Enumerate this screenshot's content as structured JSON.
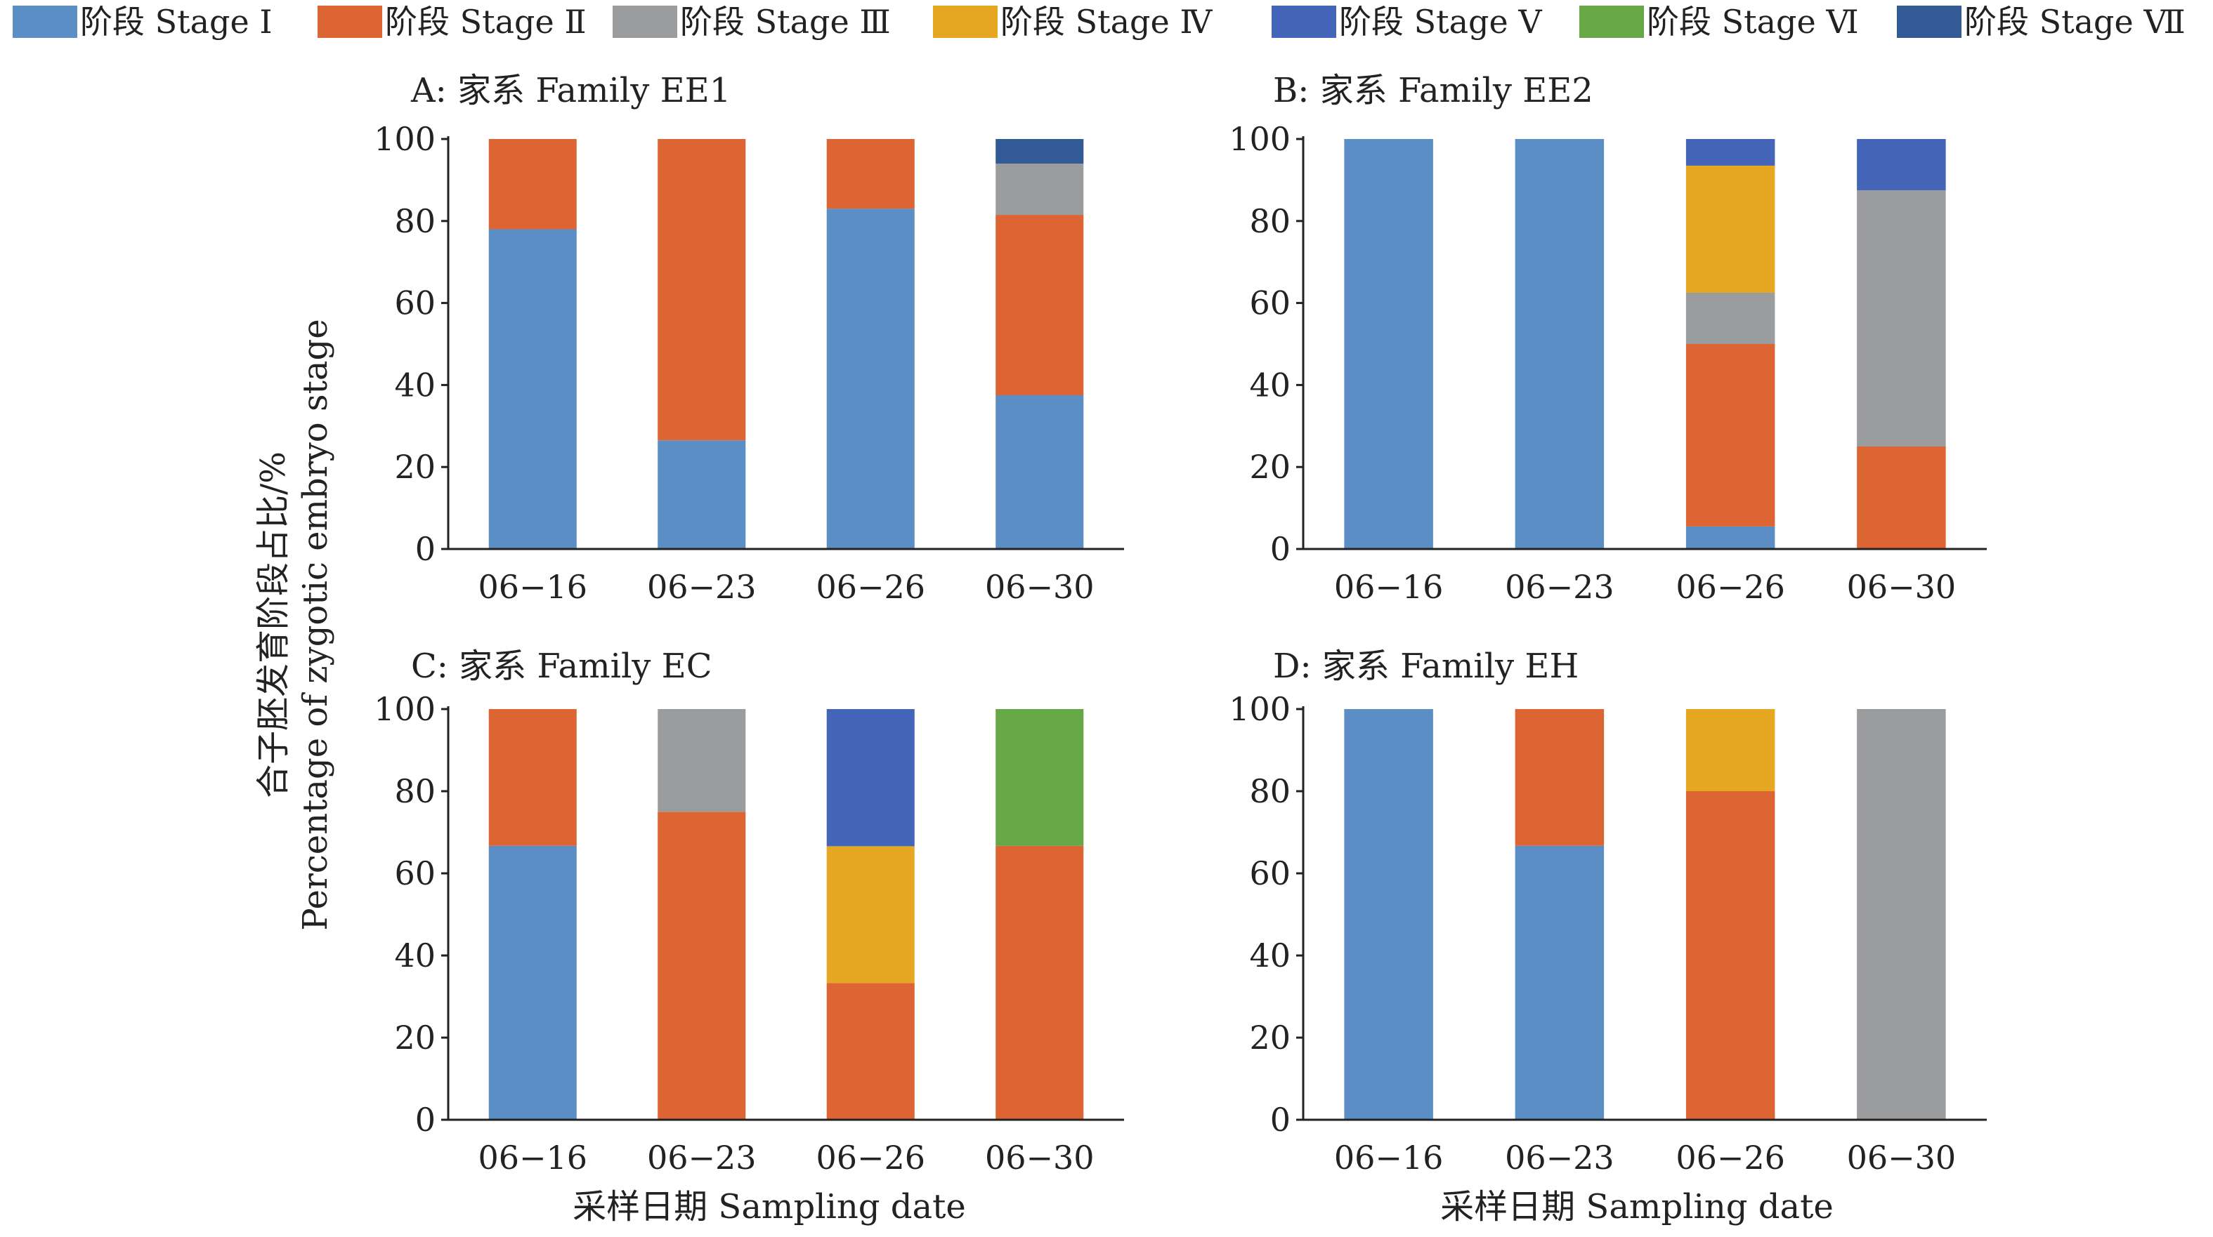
{
  "legend": [
    {
      "label": "阶段 Stage Ⅰ",
      "color": "#5b8ec4"
    },
    {
      "label": "阶段 Stage Ⅱ",
      "color": "#dd6533"
    },
    {
      "label": "阶段 Stage Ⅲ",
      "color": "#9b9c9e"
    },
    {
      "label": "阶段 Stage Ⅳ",
      "color": "#e6a823"
    },
    {
      "label": "阶段 Stage Ⅴ",
      "color": "#4566b8"
    },
    {
      "label": "阶段 Stage Ⅵ",
      "color": "#65a845"
    },
    {
      "label": "阶段 Stage Ⅶ",
      "color": "#325a94"
    }
  ],
  "ylabel_line1": "合子胚发育阶段占比/%",
  "ylabel_line2": "Percentage of zygotic embryo stage",
  "xlabel": "采样日期 Sampling date",
  "chart_data": [
    {
      "type": "bar",
      "stacked": true,
      "title": "A: 家系 Family EE1",
      "categories": [
        "06−16",
        "06−23",
        "06−26",
        "06−30"
      ],
      "ylim": [
        0,
        100
      ],
      "yticks": [
        0,
        20,
        40,
        60,
        80,
        100
      ],
      "series": [
        {
          "name": "阶段 Stage Ⅰ",
          "values": [
            78,
            26.5,
            83,
            37.5
          ]
        },
        {
          "name": "阶段 Stage Ⅱ",
          "values": [
            22,
            73.5,
            17,
            44
          ]
        },
        {
          "name": "阶段 Stage Ⅲ",
          "values": [
            0,
            0,
            0,
            12.5
          ]
        },
        {
          "name": "阶段 Stage Ⅳ",
          "values": [
            0,
            0,
            0,
            0
          ]
        },
        {
          "name": "阶段 Stage Ⅴ",
          "values": [
            0,
            0,
            0,
            0
          ]
        },
        {
          "name": "阶段 Stage Ⅵ",
          "values": [
            0,
            0,
            0,
            0
          ]
        },
        {
          "name": "阶段 Stage Ⅶ",
          "values": [
            0,
            0,
            0,
            6
          ]
        }
      ]
    },
    {
      "type": "bar",
      "stacked": true,
      "title": "B: 家系 Family EE2",
      "categories": [
        "06−16",
        "06−23",
        "06−26",
        "06−30"
      ],
      "ylim": [
        0,
        100
      ],
      "yticks": [
        0,
        20,
        40,
        60,
        80,
        100
      ],
      "series": [
        {
          "name": "阶段 Stage Ⅰ",
          "values": [
            100,
            100,
            5.5,
            0
          ]
        },
        {
          "name": "阶段 Stage Ⅱ",
          "values": [
            0,
            0,
            44.5,
            25
          ]
        },
        {
          "name": "阶段 Stage Ⅲ",
          "values": [
            0,
            0,
            12.5,
            62.5
          ]
        },
        {
          "name": "阶段 Stage Ⅳ",
          "values": [
            0,
            0,
            31,
            0
          ]
        },
        {
          "name": "阶段 Stage Ⅴ",
          "values": [
            0,
            0,
            6.5,
            12.5
          ]
        },
        {
          "name": "阶段 Stage Ⅵ",
          "values": [
            0,
            0,
            0,
            0
          ]
        },
        {
          "name": "阶段 Stage Ⅶ",
          "values": [
            0,
            0,
            0,
            0
          ]
        }
      ]
    },
    {
      "type": "bar",
      "stacked": true,
      "title": "C: 家系 Family EC",
      "categories": [
        "06−16",
        "06−23",
        "06−26",
        "06−30"
      ],
      "ylim": [
        0,
        100
      ],
      "yticks": [
        0,
        20,
        40,
        60,
        80,
        100
      ],
      "series": [
        {
          "name": "阶段 Stage Ⅰ",
          "values": [
            66.7,
            0,
            0,
            0
          ]
        },
        {
          "name": "阶段 Stage Ⅱ",
          "values": [
            33.3,
            75,
            33.3,
            66.7
          ]
        },
        {
          "name": "阶段 Stage Ⅲ",
          "values": [
            0,
            25,
            0,
            0
          ]
        },
        {
          "name": "阶段 Stage Ⅳ",
          "values": [
            0,
            0,
            33.3,
            0
          ]
        },
        {
          "name": "阶段 Stage Ⅴ",
          "values": [
            0,
            0,
            33.4,
            0
          ]
        },
        {
          "name": "阶段 Stage Ⅵ",
          "values": [
            0,
            0,
            0,
            33.3
          ]
        },
        {
          "name": "阶段 Stage Ⅶ",
          "values": [
            0,
            0,
            0,
            0
          ]
        }
      ]
    },
    {
      "type": "bar",
      "stacked": true,
      "title": "D: 家系 Family EH",
      "categories": [
        "06−16",
        "06−23",
        "06−26",
        "06−30"
      ],
      "ylim": [
        0,
        100
      ],
      "yticks": [
        0,
        20,
        40,
        60,
        80,
        100
      ],
      "series": [
        {
          "name": "阶段 Stage Ⅰ",
          "values": [
            100,
            66.7,
            0,
            0
          ]
        },
        {
          "name": "阶段 Stage Ⅱ",
          "values": [
            0,
            33.3,
            80,
            0
          ]
        },
        {
          "name": "阶段 Stage Ⅲ",
          "values": [
            0,
            0,
            0,
            100
          ]
        },
        {
          "name": "阶段 Stage Ⅳ",
          "values": [
            0,
            0,
            20,
            0
          ]
        },
        {
          "name": "阶段 Stage Ⅴ",
          "values": [
            0,
            0,
            0,
            0
          ]
        },
        {
          "name": "阶段 Stage Ⅵ",
          "values": [
            0,
            0,
            0,
            0
          ]
        },
        {
          "name": "阶段 Stage Ⅶ",
          "values": [
            0,
            0,
            0,
            0
          ]
        }
      ]
    }
  ]
}
